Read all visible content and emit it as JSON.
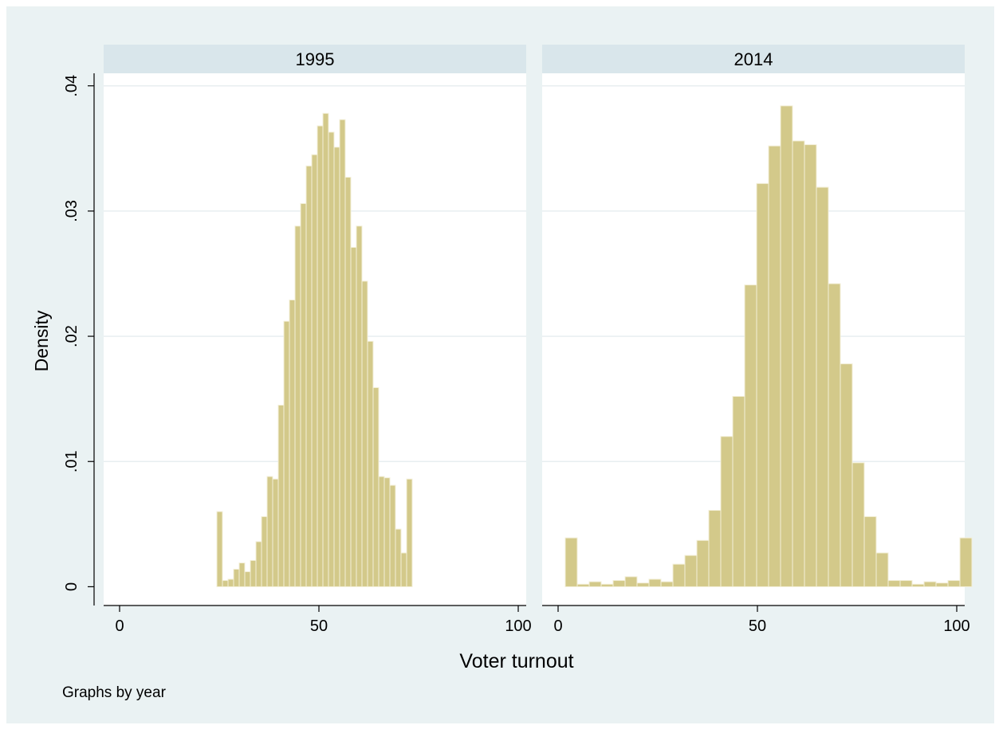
{
  "footnote": "Graphs by year",
  "colors": {
    "page_bg": "#ffffff",
    "plot_bg": "#eaf2f3",
    "panel_bg": "#ffffff",
    "strip_bg": "#d9e6eb",
    "bar_fill": "#d3c98a",
    "bar_edge": "#f3efd8",
    "grid": "#e8eef0",
    "axis": "#000000"
  },
  "chart_data": [
    {
      "type": "bar",
      "panel_label": "1995",
      "xlabel": "Voter turnout",
      "ylabel": "Density",
      "xlim": [
        -4,
        102
      ],
      "ylim": [
        -0.0015,
        0.041
      ],
      "xticks": [
        0,
        50,
        100
      ],
      "xtick_labels": [
        "0",
        "50",
        "100"
      ],
      "yticks": [
        0,
        0.01,
        0.02,
        0.03,
        0.04
      ],
      "ytick_labels": [
        "0",
        ".01",
        ".02",
        ".03",
        ".04"
      ],
      "grid": true,
      "bin_width": 1.4,
      "bin_start": 24.4,
      "values": [
        0.006,
        0.0005,
        0.0006,
        0.0014,
        0.0019,
        0.0012,
        0.0021,
        0.0036,
        0.0056,
        0.0088,
        0.0086,
        0.0145,
        0.0212,
        0.0229,
        0.0288,
        0.0306,
        0.0336,
        0.0345,
        0.0368,
        0.0378,
        0.0363,
        0.0351,
        0.0373,
        0.0327,
        0.0271,
        0.0288,
        0.0244,
        0.0196,
        0.0159,
        0.0088,
        0.0087,
        0.0081,
        0.0046,
        0.0027,
        0.0086
      ]
    },
    {
      "type": "bar",
      "panel_label": "2014",
      "xlabel": "Voter turnout",
      "ylabel": "Density",
      "xlim": [
        -4,
        102
      ],
      "ylim": [
        -0.0015,
        0.041
      ],
      "xticks": [
        0,
        50,
        100
      ],
      "xtick_labels": [
        "0",
        "50",
        "100"
      ],
      "yticks": [
        0,
        0.01,
        0.02,
        0.03,
        0.04
      ],
      "ytick_labels": [
        "0",
        ".01",
        ".02",
        ".03",
        ".04"
      ],
      "grid": true,
      "bin_width": 3.0,
      "bin_start": 1.8,
      "values": [
        0.0039,
        0.0002,
        0.0004,
        0.0002,
        0.0005,
        0.0008,
        0.0003,
        0.0006,
        0.0004,
        0.0018,
        0.0025,
        0.0037,
        0.0061,
        0.012,
        0.0152,
        0.0241,
        0.0322,
        0.0352,
        0.0384,
        0.0356,
        0.0353,
        0.0319,
        0.0242,
        0.0178,
        0.0099,
        0.0056,
        0.0027,
        0.0005,
        0.0005,
        0.0002,
        0.0004,
        0.0003,
        0.0005,
        0.0039
      ]
    }
  ]
}
